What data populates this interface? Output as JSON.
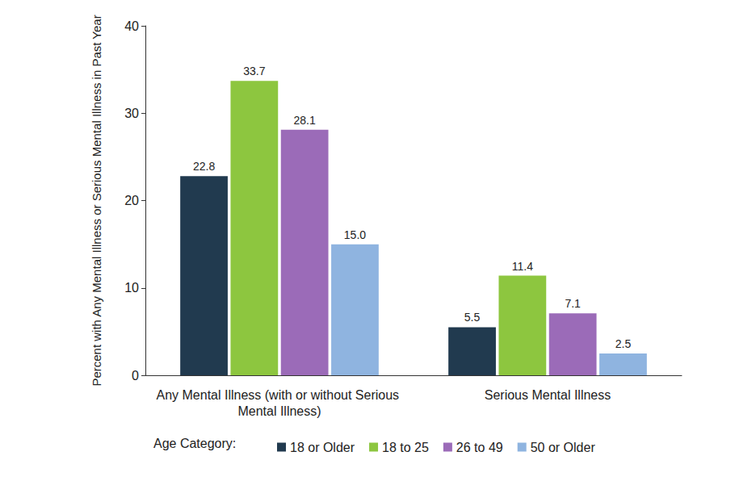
{
  "chart_data": {
    "type": "bar",
    "y_label": "Percent with Any Mental Illness or Serious Mental Illness in Past Year",
    "categories": [
      "Any Mental Illness (with or without Serious Mental Illness)",
      "Serious Mental Illness"
    ],
    "legend_title": "Age Category:",
    "series": [
      {
        "name": "18 or Older",
        "color": "#213a4f",
        "values": [
          22.8,
          5.5
        ],
        "value_labels": [
          "22.8",
          "5.5"
        ]
      },
      {
        "name": "18 to 25",
        "color": "#8dc63f",
        "values": [
          33.7,
          11.4
        ],
        "value_labels": [
          "33.7",
          "11.4"
        ]
      },
      {
        "name": "26 to 49",
        "color": "#9b6bb8",
        "values": [
          28.1,
          7.1
        ],
        "value_labels": [
          "28.1",
          "7.1"
        ]
      },
      {
        "name": "50 or Older",
        "color": "#8fb4e0",
        "values": [
          15.0,
          2.5
        ],
        "value_labels": [
          "15.0",
          "2.5"
        ]
      }
    ],
    "ylim": [
      0,
      40
    ],
    "yticks": [
      0,
      10,
      20,
      30,
      40
    ],
    "grid": false,
    "legend": "bottom",
    "data_labels": true
  }
}
